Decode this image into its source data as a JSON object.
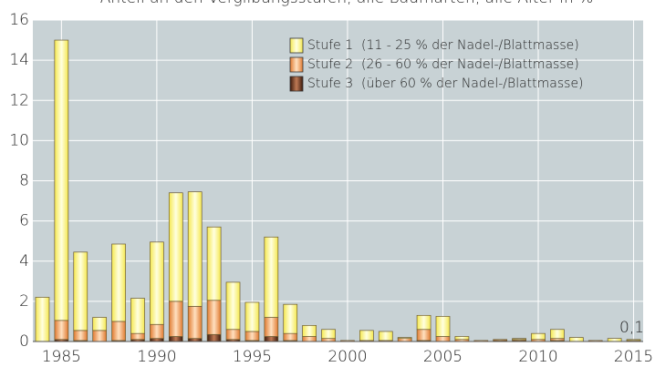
{
  "chart_data": {
    "type": "stacked_bar",
    "title": "Anteil an den Vergilbungsstufen, alle Baumarten, alle Alter in %",
    "categories": [
      null,
      "1985",
      null,
      null,
      null,
      null,
      "1990",
      null,
      null,
      null,
      null,
      "1995",
      null,
      null,
      null,
      null,
      "2000",
      null,
      null,
      null,
      null,
      "2005",
      null,
      null,
      null,
      null,
      "2010",
      null,
      null,
      null,
      null,
      "2015"
    ],
    "series": [
      {
        "name": "Stufe 3  (über 60 % der Nadel-/Blattmasse)",
        "color": "#7a3d22",
        "values": [
          0,
          0.1,
          0.05,
          0,
          0.05,
          0.1,
          0.15,
          0.25,
          0.15,
          0.35,
          0.1,
          0.05,
          0.25,
          0.05,
          0,
          0,
          0,
          0,
          0,
          0,
          0.05,
          0,
          0,
          0,
          0.05,
          0.05,
          0,
          0.05,
          0,
          0,
          0,
          0
        ]
      },
      {
        "name": "Stufe 2  (26 - 60 % der Nadel-/Blattmasse)",
        "color": "#f2a560",
        "values": [
          0,
          0.95,
          0.5,
          0.55,
          0.95,
          0.3,
          0.7,
          1.75,
          1.6,
          1.7,
          0.5,
          0.45,
          0.95,
          0.35,
          0.25,
          0.15,
          0.05,
          0.05,
          0.05,
          0.15,
          0.55,
          0.25,
          0.1,
          0.05,
          0.05,
          0.05,
          0.1,
          0.1,
          0,
          0.05,
          0,
          0.05
        ]
      },
      {
        "name": "Stufe 1  (11 - 25 % der Nadel-/Blattmasse)",
        "color": "#ffff8c",
        "values": [
          2.2,
          13.95,
          3.9,
          0.65,
          3.85,
          1.75,
          4.1,
          5.4,
          5.7,
          3.65,
          2.35,
          1.45,
          4.0,
          1.45,
          0.55,
          0.45,
          0,
          0.5,
          0.45,
          0.05,
          0.7,
          1.0,
          0.15,
          0,
          0,
          0.05,
          0.3,
          0.45,
          0.2,
          0,
          0.15,
          0.05
        ]
      }
    ],
    "annotation": "0,1",
    "ylim": [
      0,
      16
    ],
    "yticks": [
      0,
      2,
      4,
      6,
      8,
      10,
      12,
      14,
      16
    ],
    "grid": true,
    "legend": "upper right"
  }
}
